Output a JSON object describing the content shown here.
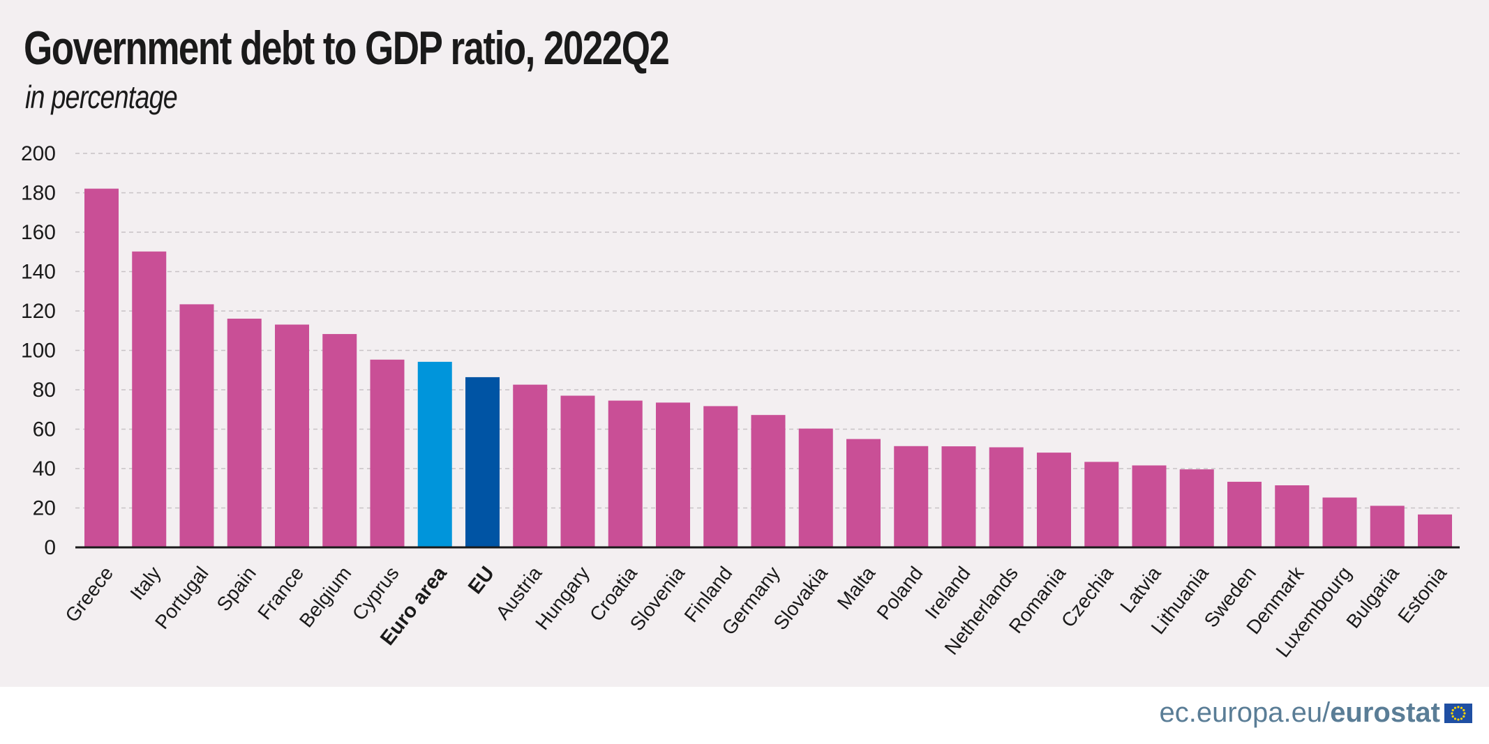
{
  "title": "Government debt to GDP ratio, 2022Q2",
  "subtitle": "in percentage",
  "footer": {
    "site": "ec.europa.eu/",
    "brand": "eurostat",
    "flag_icon": "eu-flag-icon"
  },
  "colors": {
    "country": "#c94f96",
    "euro_area": "#0095db",
    "eu": "#0054a4",
    "grid": "#c8c2c6",
    "axis": "#1a1a1a"
  },
  "chart_data": {
    "type": "bar",
    "title": "Government debt to GDP ratio, 2022Q2",
    "subtitle": "in percentage",
    "ylim": [
      0,
      200
    ],
    "yticks": [
      0,
      20,
      40,
      60,
      80,
      100,
      120,
      140,
      160,
      180,
      200
    ],
    "grid": true,
    "categories": [
      "Greece",
      "Italy",
      "Portugal",
      "Spain",
      "France",
      "Belgium",
      "Cyprus",
      "Euro area",
      "EU",
      "Austria",
      "Hungary",
      "Croatia",
      "Slovenia",
      "Finland",
      "Germany",
      "Slovakia",
      "Malta",
      "Poland",
      "Ireland",
      "Netherlands",
      "Romania",
      "Czechia",
      "Latvia",
      "Lithuania",
      "Sweden",
      "Denmark",
      "Luxembourg",
      "Bulgaria",
      "Estonia"
    ],
    "values": [
      182.1,
      150.2,
      123.4,
      116.1,
      113.1,
      108.3,
      95.3,
      94.2,
      86.4,
      82.6,
      77.0,
      74.5,
      73.5,
      71.7,
      67.2,
      60.3,
      55.0,
      51.4,
      51.3,
      50.8,
      48.1,
      43.4,
      41.6,
      39.6,
      33.3,
      31.5,
      25.3,
      21.1,
      16.7
    ],
    "highlight": {
      "Euro area": "euro_area",
      "EU": "eu"
    },
    "bold_labels": [
      "Euro area",
      "EU"
    ]
  }
}
